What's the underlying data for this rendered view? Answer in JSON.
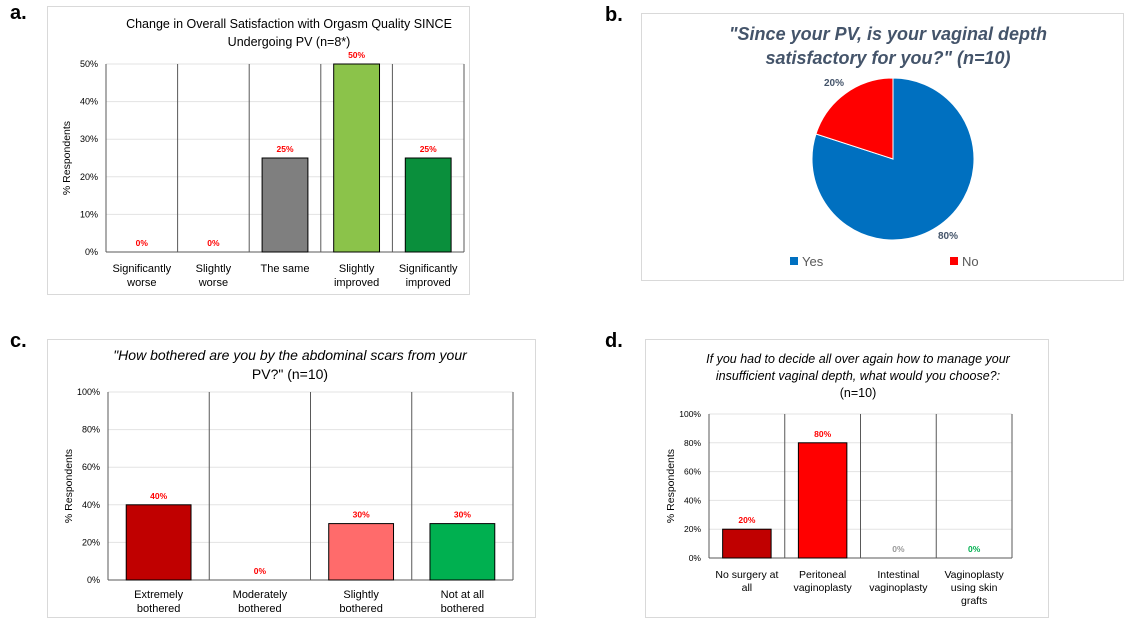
{
  "panel_letters": [
    "a.",
    "b.",
    "c.",
    "d."
  ],
  "chart_data": [
    {
      "type": "bar",
      "panel": "a.",
      "title_lines": [
        "Change in Overall Satisfaction with Orgasm Quality SINCE",
        "Undergoing PV (n=8*)"
      ],
      "ylabel": "% Respondents",
      "ylim": [
        0,
        50
      ],
      "yticks": [
        "0%",
        "10%",
        "20%",
        "30%",
        "40%",
        "50%"
      ],
      "categories": [
        [
          "Significantly",
          "worse"
        ],
        [
          "Slightly",
          "worse"
        ],
        [
          "The same"
        ],
        [
          "Slightly",
          "improved"
        ],
        [
          "Significantly",
          "improved"
        ]
      ],
      "values": [
        0,
        0,
        25,
        50,
        25
      ],
      "labels": [
        "0%",
        "0%",
        "25%",
        "50%",
        "25%"
      ],
      "colors": [
        "#ffffff",
        "#ffffff",
        "#7f7f7f",
        "#8bc34a",
        "#0a8f3c"
      ],
      "label_color": "#ff0000",
      "grid": true
    },
    {
      "type": "pie",
      "panel": "b.",
      "title_lines": [
        "\"Since your PV, is your vaginal depth",
        "satisfactory for you?\" (n=10)"
      ],
      "slices": [
        {
          "name": "Yes",
          "value": 80,
          "label": "80%",
          "color": "#0070c0"
        },
        {
          "name": "No",
          "value": 20,
          "label": "20%",
          "color": "#ff0000"
        }
      ],
      "title_color": "#44546a",
      "legend_position": "bottom"
    },
    {
      "type": "bar",
      "panel": "c.",
      "title_lines": [
        "\"How bothered are you by the abdominal scars from your",
        "PV?\" (n=10)"
      ],
      "ylabel": "% Respondents",
      "ylim": [
        0,
        100
      ],
      "yticks": [
        "0%",
        "20%",
        "40%",
        "60%",
        "80%",
        "100%"
      ],
      "categories": [
        [
          "Extremely",
          "bothered"
        ],
        [
          "Moderately",
          "bothered"
        ],
        [
          "Slightly",
          "bothered"
        ],
        [
          "Not at all",
          "bothered"
        ]
      ],
      "values": [
        40,
        0,
        30,
        30
      ],
      "labels": [
        "40%",
        "0%",
        "30%",
        "30%"
      ],
      "colors": [
        "#c00000",
        "#ffffff",
        "#ff6b6b",
        "#00b050"
      ],
      "label_color": "#ff0000",
      "grid": true
    },
    {
      "type": "bar",
      "panel": "d.",
      "title_lines": [
        "If you had to decide all over again how to manage your",
        "insufficient vaginal depth, what would you choose?:",
        "(n=10)"
      ],
      "ylabel": "% Respondents",
      "ylim": [
        0,
        100
      ],
      "yticks": [
        "0%",
        "20%",
        "40%",
        "60%",
        "80%",
        "100%"
      ],
      "categories": [
        [
          "No surgery at",
          "all"
        ],
        [
          "Peritoneal",
          "vaginoplasty"
        ],
        [
          "Intestinal",
          "vaginoplasty"
        ],
        [
          "Vaginoplasty",
          "using skin",
          "grafts"
        ]
      ],
      "values": [
        20,
        80,
        0,
        0
      ],
      "labels": [
        "20%",
        "80%",
        "0%",
        "0%"
      ],
      "colors": [
        "#c00000",
        "#ff0000",
        "#ffffff",
        "#ffffff"
      ],
      "label_colors": [
        "#ff0000",
        "#ff0000",
        "#999999",
        "#00b050"
      ],
      "grid": true
    }
  ]
}
